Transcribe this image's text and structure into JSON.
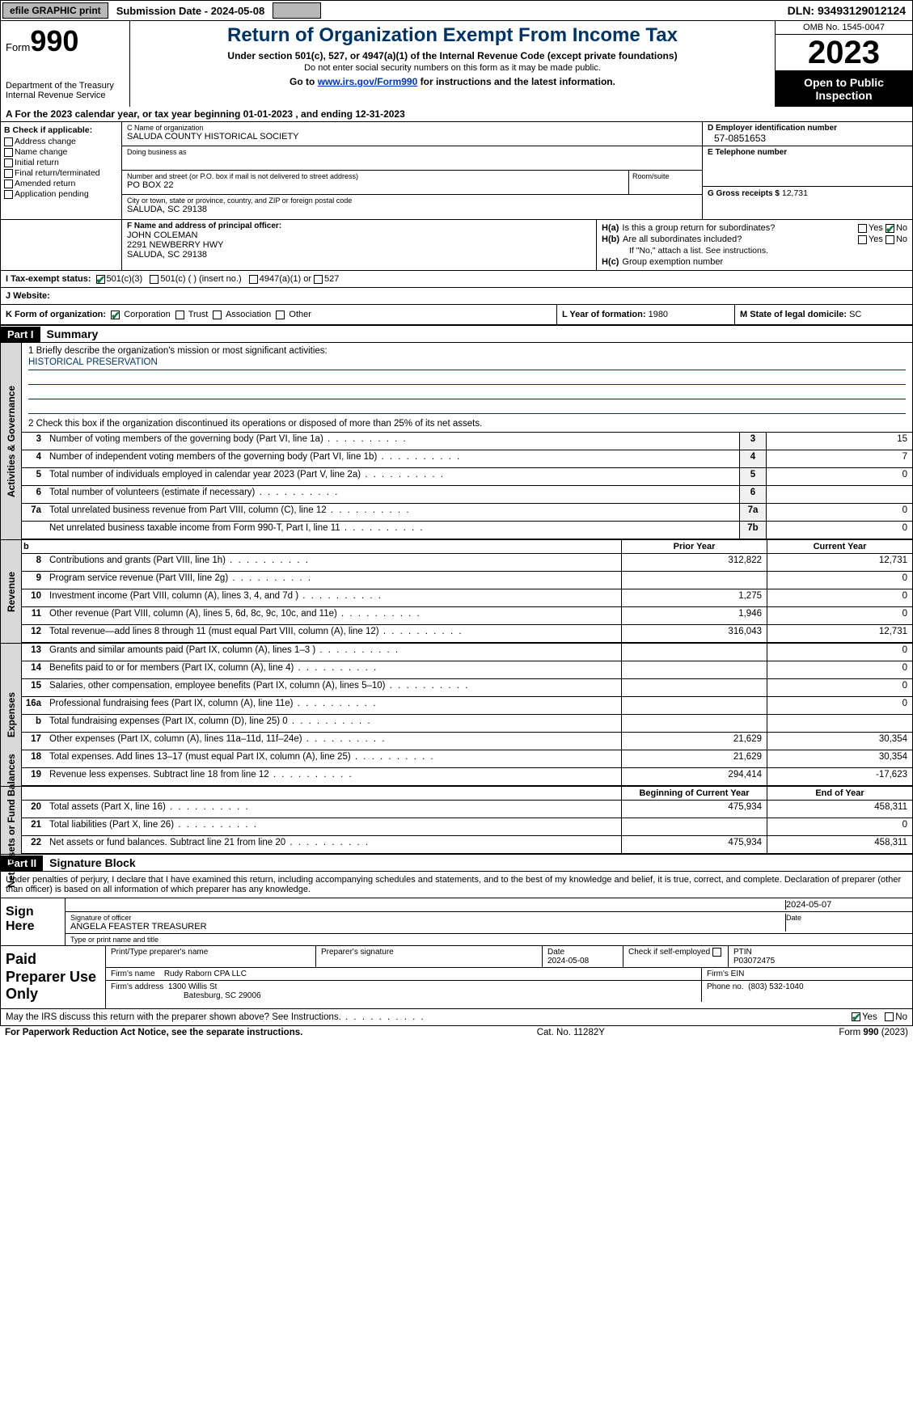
{
  "topbar": {
    "efile": "efile GRAPHIC print",
    "submission": "Submission Date - 2024-05-08",
    "dln": "DLN: 93493129012124"
  },
  "header": {
    "form_label": "Form",
    "form_number": "990",
    "dept": "Department of the Treasury\nInternal Revenue Service",
    "title": "Return of Organization Exempt From Income Tax",
    "sub1": "Under section 501(c), 527, or 4947(a)(1) of the Internal Revenue Code (except private foundations)",
    "sub2": "Do not enter social security numbers on this form as it may be made public.",
    "sub3_pre": "Go to ",
    "sub3_link": "www.irs.gov/Form990",
    "sub3_post": " for instructions and the latest information.",
    "omb": "OMB No. 1545-0047",
    "year": "2023",
    "otp": "Open to Public Inspection"
  },
  "line_a": "A For the 2023 calendar year, or tax year beginning 01-01-2023   , and ending 12-31-2023",
  "box_b": {
    "header": "B Check if applicable:",
    "items": [
      "Address change",
      "Name change",
      "Initial return",
      "Final return/terminated",
      "Amended return",
      "Application pending"
    ]
  },
  "box_c": {
    "name_lbl": "C Name of organization",
    "name": "SALUDA COUNTY HISTORICAL SOCIETY",
    "dba_lbl": "Doing business as",
    "dba": "",
    "addr_lbl": "Number and street (or P.O. box if mail is not delivered to street address)",
    "addr": "PO BOX 22",
    "room_lbl": "Room/suite",
    "city_lbl": "City or town, state or province, country, and ZIP or foreign postal code",
    "city": "SALUDA, SC  29138"
  },
  "box_d": {
    "ein_lbl": "D Employer identification number",
    "ein": "57-0851653",
    "tel_lbl": "E Telephone number",
    "tel": "",
    "gross_lbl": "G Gross receipts $",
    "gross": "12,731"
  },
  "box_f": {
    "lbl": "F Name and address of principal officer:",
    "name": "JOHN COLEMAN",
    "addr1": "2291 NEWBERRY HWY",
    "addr2": "SALUDA, SC  29138"
  },
  "box_h": {
    "a_lbl": "H(a)",
    "a_q": "Is this a group return for subordinates?",
    "b_lbl": "H(b)",
    "b_q": "Are all subordinates included?",
    "b_note": "If \"No,\" attach a list. See instructions.",
    "c_lbl": "H(c)",
    "c_q": "Group exemption number",
    "yes": "Yes",
    "no": "No"
  },
  "box_i": {
    "lbl": "I   Tax-exempt status:",
    "opts": [
      "501(c)(3)",
      "501(c) (  ) (insert no.)",
      "4947(a)(1) or",
      "527"
    ]
  },
  "box_j": {
    "lbl": "J   Website:",
    "val": ""
  },
  "box_k": {
    "lbl": "K Form of organization:",
    "opts": [
      "Corporation",
      "Trust",
      "Association",
      "Other"
    ]
  },
  "box_l": {
    "lbl": "L Year of formation:",
    "val": "1980"
  },
  "box_m": {
    "lbl": "M State of legal domicile:",
    "val": "SC"
  },
  "part1": {
    "tag": "Part I",
    "title": "Summary"
  },
  "mission": {
    "line1_lbl": "1  Briefly describe the organization's mission or most significant activities:",
    "line1_val": "HISTORICAL PRESERVATION",
    "line2": "2   Check this box      if the organization discontinued its operations or disposed of more than 25% of its net assets."
  },
  "vtabs": {
    "gov": "Activities & Governance",
    "rev": "Revenue",
    "exp": "Expenses",
    "net": "Net Assets or Fund Balances"
  },
  "rows_gov": [
    {
      "n": "3",
      "d": "Number of voting members of the governing body (Part VI, line 1a)",
      "box": "3",
      "v": "15"
    },
    {
      "n": "4",
      "d": "Number of independent voting members of the governing body (Part VI, line 1b)",
      "box": "4",
      "v": "7"
    },
    {
      "n": "5",
      "d": "Total number of individuals employed in calendar year 2023 (Part V, line 2a)",
      "box": "5",
      "v": "0"
    },
    {
      "n": "6",
      "d": "Total number of volunteers (estimate if necessary)",
      "box": "6",
      "v": ""
    },
    {
      "n": "7a",
      "d": "Total unrelated business revenue from Part VIII, column (C), line 12",
      "box": "7a",
      "v": "0"
    },
    {
      "n": "",
      "d": "Net unrelated business taxable income from Form 990-T, Part I, line 11",
      "box": "7b",
      "v": "0"
    }
  ],
  "colhdr": {
    "b": "b",
    "prior": "Prior Year",
    "curr": "Current Year"
  },
  "rows_rev": [
    {
      "n": "8",
      "d": "Contributions and grants (Part VIII, line 1h)",
      "p": "312,822",
      "c": "12,731"
    },
    {
      "n": "9",
      "d": "Program service revenue (Part VIII, line 2g)",
      "p": "",
      "c": "0"
    },
    {
      "n": "10",
      "d": "Investment income (Part VIII, column (A), lines 3, 4, and 7d )",
      "p": "1,275",
      "c": "0"
    },
    {
      "n": "11",
      "d": "Other revenue (Part VIII, column (A), lines 5, 6d, 8c, 9c, 10c, and 11e)",
      "p": "1,946",
      "c": "0"
    },
    {
      "n": "12",
      "d": "Total revenue—add lines 8 through 11 (must equal Part VIII, column (A), line 12)",
      "p": "316,043",
      "c": "12,731"
    }
  ],
  "rows_exp": [
    {
      "n": "13",
      "d": "Grants and similar amounts paid (Part IX, column (A), lines 1–3 )",
      "p": "",
      "c": "0"
    },
    {
      "n": "14",
      "d": "Benefits paid to or for members (Part IX, column (A), line 4)",
      "p": "",
      "c": "0"
    },
    {
      "n": "15",
      "d": "Salaries, other compensation, employee benefits (Part IX, column (A), lines 5–10)",
      "p": "",
      "c": "0"
    },
    {
      "n": "16a",
      "d": "Professional fundraising fees (Part IX, column (A), line 11e)",
      "p": "",
      "c": "0"
    },
    {
      "n": "b",
      "d": "Total fundraising expenses (Part IX, column (D), line 25) 0",
      "p": "shade",
      "c": "shade"
    },
    {
      "n": "17",
      "d": "Other expenses (Part IX, column (A), lines 11a–11d, 11f–24e)",
      "p": "21,629",
      "c": "30,354"
    },
    {
      "n": "18",
      "d": "Total expenses. Add lines 13–17 (must equal Part IX, column (A), line 25)",
      "p": "21,629",
      "c": "30,354"
    },
    {
      "n": "19",
      "d": "Revenue less expenses. Subtract line 18 from line 12",
      "p": "294,414",
      "c": "-17,623"
    }
  ],
  "colhdr2": {
    "begin": "Beginning of Current Year",
    "end": "End of Year"
  },
  "rows_net": [
    {
      "n": "20",
      "d": "Total assets (Part X, line 16)",
      "p": "475,934",
      "c": "458,311"
    },
    {
      "n": "21",
      "d": "Total liabilities (Part X, line 26)",
      "p": "",
      "c": "0"
    },
    {
      "n": "22",
      "d": "Net assets or fund balances. Subtract line 21 from line 20",
      "p": "475,934",
      "c": "458,311"
    }
  ],
  "part2": {
    "tag": "Part II",
    "title": "Signature Block"
  },
  "sig": {
    "decl": "Under penalties of perjury, I declare that I have examined this return, including accompanying schedules and statements, and to the best of my knowledge and belief, it is true, correct, and complete. Declaration of preparer (other than officer) is based on all information of which preparer has any knowledge.",
    "here": "Sign Here",
    "sig_lbl": "Signature of officer",
    "officer": "ANGELA FEASTER  TREASURER",
    "type_lbl": "Type or print name and title",
    "date_lbl": "Date",
    "date": "2024-05-07"
  },
  "paid": {
    "title": "Paid Preparer Use Only",
    "name_lbl": "Print/Type preparer's name",
    "sig_lbl": "Preparer's signature",
    "date_lbl": "Date",
    "date": "2024-05-08",
    "check_lbl": "Check        if self-employed",
    "ptin_lbl": "PTIN",
    "ptin": "P03072475",
    "firm_name_lbl": "Firm's name",
    "firm_name": "Rudy Raborn CPA LLC",
    "firm_ein_lbl": "Firm's EIN",
    "firm_addr_lbl": "Firm's address",
    "firm_addr1": "1300 Willis St",
    "firm_addr2": "Batesburg, SC  29006",
    "phone_lbl": "Phone no.",
    "phone": "(803) 532-1040"
  },
  "discuss": {
    "q": "May the IRS discuss this return with the preparer shown above? See Instructions.",
    "yes": "Yes",
    "no": "No"
  },
  "footer": {
    "left": "For Paperwork Reduction Act Notice, see the separate instructions.",
    "mid": "Cat. No. 11282Y",
    "right_pre": "Form ",
    "right_form": "990",
    "right_post": " (2023)"
  },
  "colors": {
    "darkblue": "#003366",
    "link": "#0033cc",
    "check_green": "#0a7a3a",
    "gray_btn": "#b8b8b8",
    "gray_vtab": "#d9d9d9",
    "gray_numbox": "#f0f0f0",
    "gray_shade": "#cccccc"
  }
}
